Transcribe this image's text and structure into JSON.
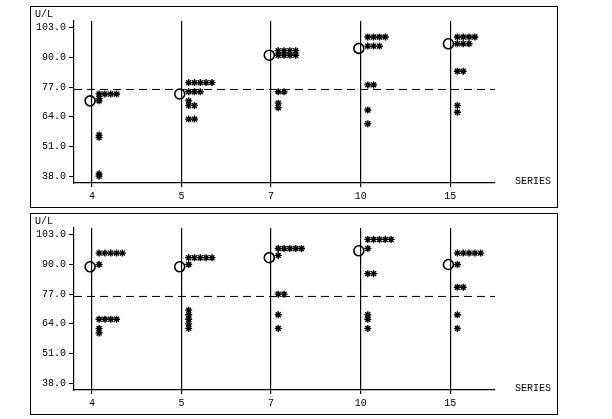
{
  "chart_data": [
    {
      "type": "scatter",
      "y_label": "U/L",
      "x_label": "SERIES",
      "categories": [
        "4",
        "5",
        "7",
        "10",
        "15"
      ],
      "ylim": [
        35,
        106
      ],
      "yticks": [
        {
          "value": 38,
          "label": "38.0"
        },
        {
          "value": 51,
          "label": "51.0"
        },
        {
          "value": 64,
          "label": "64.0"
        },
        {
          "value": 77,
          "label": "77.0"
        },
        {
          "value": 90,
          "label": "90.0"
        },
        {
          "value": 103,
          "label": "103.0"
        }
      ],
      "grid": true,
      "reference_line": {
        "value": 76,
        "line_style": "dashed",
        "color": "#000000"
      },
      "series": [
        {
          "marker": "star",
          "color": "#000000",
          "values": [
            [
              74,
              74,
              74,
              74,
              72,
              71,
              56,
              55,
              39,
              38
            ],
            [
              79,
              79,
              79,
              79,
              79,
              75,
              75,
              75,
              71,
              69,
              69,
              63,
              63
            ],
            [
              93,
              93,
              93,
              93,
              91,
              91,
              91,
              91,
              75,
              75,
              70,
              68
            ],
            [
              99,
              99,
              99,
              99,
              95,
              95,
              95,
              78,
              78,
              67,
              61
            ],
            [
              99,
              99,
              99,
              99,
              96,
              96,
              96,
              84,
              84,
              69,
              66
            ]
          ]
        },
        {
          "marker": "circle",
          "color": "#000000",
          "values": [
            71,
            74,
            91,
            94,
            96
          ]
        }
      ]
    },
    {
      "type": "scatter",
      "y_label": "U/L",
      "x_label": "SERIES",
      "categories": [
        "4",
        "5",
        "7",
        "10",
        "15"
      ],
      "ylim": [
        35,
        106
      ],
      "yticks": [
        {
          "value": 38,
          "label": "38.0"
        },
        {
          "value": 51,
          "label": "51.0"
        },
        {
          "value": 64,
          "label": "64.0"
        },
        {
          "value": 77,
          "label": "77.0"
        },
        {
          "value": 90,
          "label": "90.0"
        },
        {
          "value": 103,
          "label": "103.0"
        }
      ],
      "grid": true,
      "reference_line": {
        "value": 76,
        "line_style": "dashed",
        "color": "#000000"
      },
      "series": [
        {
          "marker": "star",
          "color": "#000000",
          "values": [
            [
              95,
              95,
              95,
              95,
              95,
              90,
              66,
              66,
              66,
              66,
              62,
              60
            ],
            [
              93,
              93,
              93,
              93,
              93,
              90,
              70,
              68,
              66,
              64,
              62
            ],
            [
              97,
              97,
              97,
              97,
              97,
              94,
              77,
              77,
              68,
              62
            ],
            [
              101,
              101,
              101,
              101,
              101,
              97,
              86,
              86,
              68,
              66,
              62
            ],
            [
              95,
              95,
              95,
              95,
              95,
              90,
              80,
              80,
              68,
              62
            ]
          ]
        },
        {
          "marker": "circle",
          "color": "#000000",
          "values": [
            89,
            89,
            93,
            96,
            90
          ]
        }
      ]
    }
  ]
}
